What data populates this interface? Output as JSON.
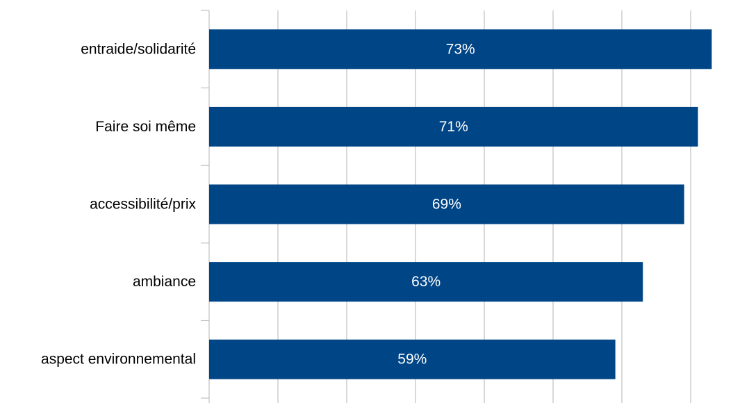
{
  "chart_data": {
    "type": "bar",
    "orientation": "horizontal",
    "categories": [
      "entraide/solidarité",
      "Faire soi même",
      "accessibilité/prix",
      "ambiance",
      "aspect environnemental"
    ],
    "values": [
      73,
      71,
      69,
      63,
      59
    ],
    "data_labels": [
      "73%",
      "71%",
      "69%",
      "63%",
      "59%"
    ],
    "xlim": [
      0,
      77
    ],
    "grid": true,
    "bar_color": "#004586"
  }
}
